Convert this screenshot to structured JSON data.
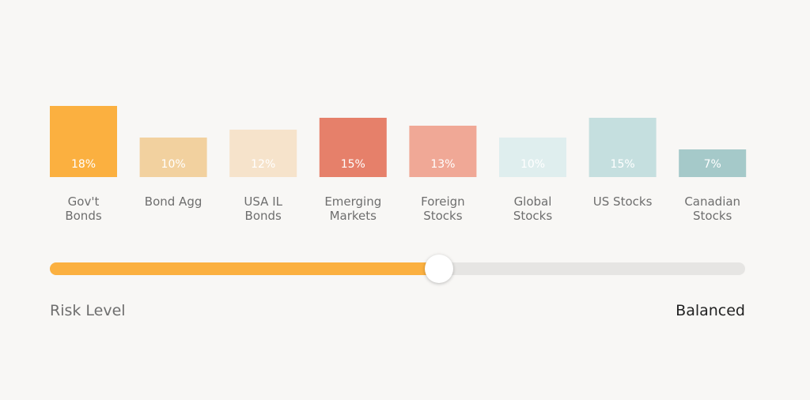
{
  "chart_data": {
    "type": "bar",
    "categories": [
      "Gov't\nBonds",
      "Bond Agg",
      "USA IL\nBonds",
      "Emerging\nMarkets",
      "Foreign\nStocks",
      "Global\nStocks",
      "US Stocks",
      "Canadian\nStocks"
    ],
    "values": [
      18,
      10,
      12,
      15,
      13,
      10,
      15,
      7
    ],
    "data_labels": [
      "18%",
      "10%",
      "12%",
      "15%",
      "13%",
      "10%",
      "15%",
      "7%"
    ],
    "colors": [
      "#fbb040",
      "#f2d19f",
      "#f6e3cb",
      "#e6806a",
      "#f0a896",
      "#dfeeee",
      "#c5dfdf",
      "#a5c9c9"
    ],
    "title": "",
    "xlabel": "",
    "ylabel": "",
    "ylim": [
      0,
      18
    ],
    "grid": false
  },
  "slider": {
    "label": "Risk Level",
    "value_text": "Balanced",
    "fill_fraction": 0.56,
    "fill_color": "#fbb040",
    "track_color": "#e6e5e3"
  }
}
